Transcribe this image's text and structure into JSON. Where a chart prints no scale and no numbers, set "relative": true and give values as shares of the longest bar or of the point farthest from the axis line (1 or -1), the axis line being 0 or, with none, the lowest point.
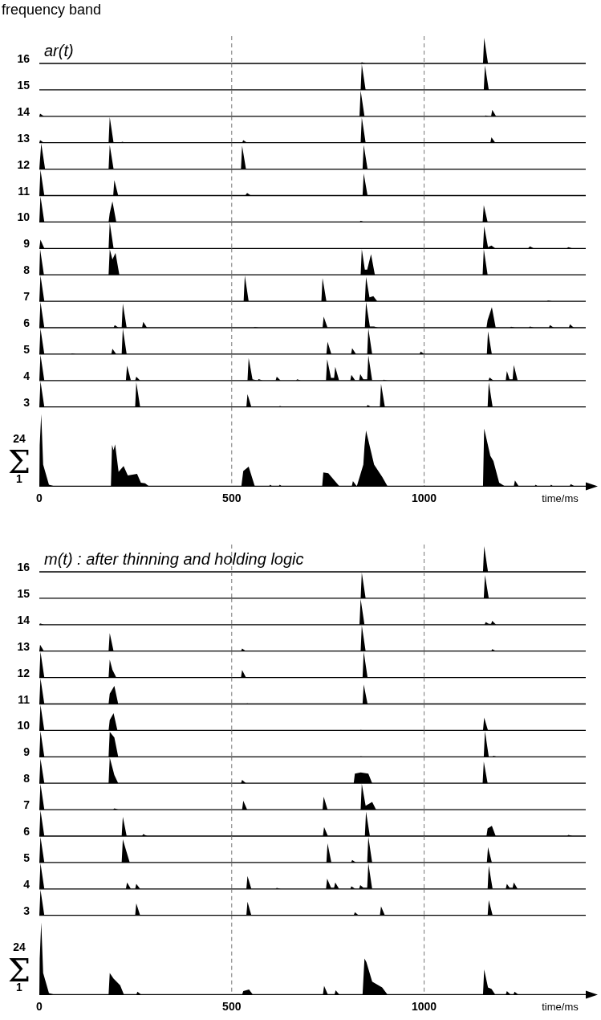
{
  "chart_data": [
    {
      "type": "area",
      "title": "ar(t)",
      "annotations": [
        "frequency band"
      ],
      "ylabel": "16",
      "relative": true,
      "xlim": [
        0,
        1420
      ],
      "xticks": [
        0,
        500,
        1000
      ],
      "grid": "x",
      "tick_labels": false,
      "color": "#000000",
      "x": [
        835,
        838,
        848,
        1153,
        1156,
        1166
      ],
      "values": [
        0,
        0.05,
        0,
        0,
        1,
        0
      ]
    },
    {
      "type": "area",
      "ylabel": "15",
      "relative": true,
      "xlim": [
        0,
        1420
      ],
      "xticks": [
        0,
        500,
        1000
      ],
      "grid": "x",
      "tick_labels": false,
      "color": "#000000",
      "x": [
        835,
        838,
        848,
        1155,
        1158,
        1168
      ],
      "values": [
        0,
        1,
        0,
        0,
        0.95,
        0
      ]
    },
    {
      "type": "area",
      "ylabel": "14",
      "relative": true,
      "xlim": [
        0,
        1420
      ],
      "xticks": [
        0,
        500,
        1000
      ],
      "grid": "x",
      "tick_labels": false,
      "color": "#000000",
      "x": [
        0,
        2,
        12,
        832,
        835,
        845,
        1157,
        1160,
        1168,
        1174,
        1177,
        1187
      ],
      "values": [
        0,
        0.1,
        0,
        0,
        1,
        0,
        0,
        0.03,
        0,
        0,
        0.25,
        0
      ]
    },
    {
      "type": "area",
      "ylabel": "13",
      "relative": true,
      "xlim": [
        0,
        1420
      ],
      "xticks": [
        0,
        500,
        1000
      ],
      "grid": "x",
      "tick_labels": false,
      "color": "#000000",
      "x": [
        0,
        2,
        12,
        180,
        183,
        193,
        212,
        215,
        225,
        527,
        530,
        540,
        835,
        838,
        848,
        1172,
        1175,
        1185
      ],
      "values": [
        0,
        0.1,
        0,
        0,
        1,
        0,
        0,
        0.04,
        0,
        0,
        0.1,
        0,
        0,
        0.98,
        0,
        0,
        0.21,
        0
      ]
    },
    {
      "type": "area",
      "ylabel": "12",
      "relative": true,
      "xlim": [
        0,
        1420
      ],
      "xticks": [
        0,
        500,
        1000
      ],
      "grid": "x",
      "tick_labels": false,
      "color": "#000000",
      "x": [
        0,
        5,
        15,
        180,
        183,
        193,
        524,
        527,
        537,
        840,
        843,
        853
      ],
      "values": [
        0,
        1,
        0,
        0,
        0.94,
        0,
        0,
        0.91,
        0,
        0,
        0.94,
        0
      ]
    },
    {
      "type": "area",
      "ylabel": "11",
      "relative": true,
      "xlim": [
        0,
        1420
      ],
      "xticks": [
        0,
        500,
        1000
      ],
      "grid": "x",
      "tick_labels": false,
      "color": "#000000",
      "x": [
        0,
        3,
        13,
        192,
        195,
        205,
        535,
        540,
        550,
        840,
        843,
        853
      ],
      "values": [
        0,
        1,
        0,
        0,
        0.6,
        0,
        0,
        0.1,
        0,
        0,
        0.86,
        0
      ]
    },
    {
      "type": "area",
      "ylabel": "10",
      "relative": true,
      "xlim": [
        0,
        1420
      ],
      "xticks": [
        0,
        500,
        1000
      ],
      "grid": "x",
      "tick_labels": false,
      "color": "#000000",
      "x": [
        0,
        3,
        13,
        180,
        183,
        190,
        200,
        832,
        835,
        845,
        1152,
        1155,
        1165
      ],
      "values": [
        0,
        1,
        0,
        0,
        0.35,
        0.8,
        0,
        0,
        0.04,
        0,
        0,
        0.65,
        0
      ]
    },
    {
      "type": "area",
      "ylabel": "9",
      "relative": true,
      "xlim": [
        0,
        1420
      ],
      "xticks": [
        0,
        500,
        1000
      ],
      "grid": "x",
      "tick_labels": false,
      "color": "#000000",
      "x": [
        0,
        3,
        13,
        180,
        183,
        193,
        1153,
        1156,
        1166,
        1175,
        1185,
        1270,
        1275,
        1285,
        1370,
        1375,
        1385
      ],
      "values": [
        0,
        0.34,
        0,
        0,
        1,
        0,
        0,
        0.86,
        0.05,
        0.11,
        0,
        0,
        0.08,
        0,
        0,
        0.05,
        0
      ]
    },
    {
      "type": "area",
      "ylabel": "8",
      "relative": true,
      "xlim": [
        0,
        1420
      ],
      "xticks": [
        0,
        500,
        1000
      ],
      "grid": "x",
      "tick_labels": false,
      "color": "#000000",
      "x": [
        0,
        2,
        12,
        180,
        183,
        190,
        198,
        208,
        835,
        838,
        846,
        852,
        862,
        872,
        1152,
        1155,
        1165
      ],
      "values": [
        0,
        1,
        0,
        0,
        1,
        0.6,
        0.85,
        0,
        0,
        1,
        0.2,
        0.2,
        0.8,
        0,
        0,
        1,
        0
      ]
    },
    {
      "type": "area",
      "ylabel": "7",
      "relative": true,
      "xlim": [
        0,
        1420
      ],
      "xticks": [
        0,
        500,
        1000
      ],
      "grid": "x",
      "tick_labels": false,
      "color": "#000000",
      "x": [
        0,
        3,
        13,
        531,
        534,
        544,
        733,
        736,
        746,
        846,
        849,
        858,
        868,
        878,
        1319,
        1322,
        1332
      ],
      "values": [
        0,
        1,
        0,
        0,
        1,
        0,
        0,
        0.9,
        0,
        0,
        0.95,
        0.15,
        0.2,
        0,
        0,
        0.03,
        0
      ]
    },
    {
      "type": "area",
      "ylabel": "6",
      "relative": true,
      "xlim": [
        0,
        1420
      ],
      "xticks": [
        0,
        500,
        1000
      ],
      "grid": "x",
      "tick_labels": false,
      "color": "#000000",
      "x": [
        0,
        3,
        13,
        193,
        196,
        206,
        214,
        217,
        227,
        267,
        270,
        280,
        557,
        560,
        570,
        736,
        739,
        749,
        846,
        849,
        859,
        870,
        880,
        1162,
        1165,
        1176,
        1186,
        1223,
        1226,
        1236,
        1272,
        1275,
        1285,
        1324,
        1327,
        1337,
        1376,
        1379,
        1389
      ],
      "values": [
        0,
        1,
        0,
        0,
        0.1,
        0,
        0,
        0.94,
        0,
        0,
        0.23,
        0,
        0,
        0.02,
        0,
        0,
        0.43,
        0,
        0,
        1,
        0.05,
        0.05,
        0,
        0,
        0.3,
        0.8,
        0,
        0,
        0.04,
        0,
        0,
        0.05,
        0,
        0,
        0.1,
        0,
        0,
        0.13,
        0
      ]
    },
    {
      "type": "area",
      "ylabel": "5",
      "relative": true,
      "xlim": [
        0,
        1420
      ],
      "xticks": [
        0,
        500,
        1000
      ],
      "grid": "x",
      "tick_labels": false,
      "color": "#000000",
      "x": [
        0,
        3,
        13,
        82,
        85,
        95,
        187,
        190,
        200,
        214,
        217,
        227,
        746,
        749,
        759,
        810,
        813,
        823,
        852,
        855,
        865,
        988,
        991,
        1001,
        1163,
        1166,
        1176
      ],
      "values": [
        0,
        1,
        0,
        0,
        0.02,
        0,
        0,
        0.21,
        0,
        0,
        1,
        0,
        0,
        0.48,
        0,
        0,
        0.23,
        0,
        0,
        1,
        0,
        0,
        0.1,
        0,
        0,
        0.89,
        0
      ]
    },
    {
      "type": "area",
      "ylabel": "4",
      "relative": true,
      "xlim": [
        0,
        1420
      ],
      "xticks": [
        0,
        500,
        1000
      ],
      "grid": "x",
      "tick_labels": false,
      "color": "#000000",
      "x": [
        0,
        3,
        13,
        225,
        228,
        238,
        249,
        252,
        262,
        541,
        544,
        554,
        567,
        570,
        580,
        614,
        617,
        627,
        667,
        670,
        680,
        745,
        748,
        758,
        766,
        769,
        779,
        808,
        811,
        821,
        831,
        834,
        842,
        852,
        855,
        865,
        892,
        895,
        905,
        1167,
        1170,
        1180,
        1212,
        1215,
        1222,
        1230,
        1233,
        1243
      ],
      "values": [
        0,
        1,
        0,
        0,
        0.58,
        0,
        0,
        0.15,
        0,
        0,
        0.88,
        0.05,
        0,
        0.06,
        0,
        0,
        0.15,
        0,
        0,
        0.05,
        0,
        0,
        0.83,
        0.1,
        0.1,
        0.53,
        0,
        0,
        0.22,
        0,
        0,
        0.25,
        0.05,
        0.05,
        0.98,
        0,
        0,
        0.03,
        0,
        0,
        0.12,
        0,
        0,
        0.37,
        0.05,
        0.05,
        0.6,
        0
      ]
    },
    {
      "type": "area",
      "ylabel": "3",
      "relative": true,
      "xlim": [
        0,
        1420
      ],
      "xticks": [
        0,
        500,
        1000
      ],
      "grid": "x",
      "tick_labels": false,
      "color": "#000000",
      "x": [
        0,
        3,
        13,
        249,
        252,
        262,
        538,
        541,
        551,
        622,
        625,
        635,
        850,
        853,
        863,
        885,
        888,
        898,
        1165,
        1168,
        1178
      ],
      "values": [
        0,
        1,
        0,
        0,
        0.96,
        0,
        0,
        0.5,
        0,
        0,
        0.04,
        0,
        0,
        0.08,
        0,
        0,
        0.9,
        0,
        0,
        0.96,
        0
      ]
    },
    {
      "type": "area",
      "ylabel": "Σ",
      "annotations": [
        "24",
        "1"
      ],
      "xlabel": "time/ms",
      "relative": true,
      "xlim": [
        0,
        1420
      ],
      "xticks": [
        0,
        500,
        1000
      ],
      "grid": "x",
      "tick_labels": "x",
      "color": "#000000",
      "x": [
        0,
        1,
        5,
        10,
        25,
        40,
        186,
        189,
        193,
        197,
        206,
        219,
        230,
        254,
        264,
        275,
        285,
        525,
        530,
        544,
        560,
        597,
        600,
        605,
        622,
        625,
        630,
        735,
        738,
        751,
        770,
        780,
        812,
        815,
        825,
        842,
        845,
        849,
        870,
        891,
        905,
        997,
        1000,
        1005,
        1153,
        1156,
        1172,
        1180,
        1195,
        1210,
        1233,
        1236,
        1246,
        1287,
        1290,
        1295,
        1327,
        1330,
        1335,
        1378,
        1381,
        1391
      ],
      "values": [
        0,
        0.57,
        1,
        0.3,
        0.02,
        0,
        0,
        0.57,
        0.5,
        0.58,
        0.2,
        0.28,
        0.15,
        0.17,
        0.05,
        0.04,
        0,
        0,
        0.21,
        0.27,
        0,
        0,
        0.02,
        0,
        0,
        0.02,
        0,
        0,
        0.19,
        0.18,
        0.06,
        0,
        0,
        0.07,
        0,
        0.3,
        0.55,
        0.77,
        0.3,
        0.13,
        0,
        0,
        0.01,
        0,
        0,
        0.8,
        0.42,
        0.35,
        0.05,
        0,
        0,
        0.08,
        0,
        0,
        0.02,
        0,
        0,
        0.02,
        0,
        0,
        0.03,
        0
      ]
    },
    {
      "type": "area",
      "title": "m(t) : after thinning and holding logic",
      "ylabel": "16",
      "relative": true,
      "xlim": [
        0,
        1420
      ],
      "xticks": [
        0,
        500,
        1000
      ],
      "grid": "x",
      "tick_labels": false,
      "color": "#000000",
      "x": [
        1153,
        1156,
        1166
      ],
      "values": [
        0,
        1,
        0
      ]
    },
    {
      "type": "area",
      "ylabel": "15",
      "relative": true,
      "xlim": [
        0,
        1420
      ],
      "xticks": [
        0,
        500,
        1000
      ],
      "grid": "x",
      "tick_labels": false,
      "color": "#000000",
      "x": [
        835,
        838,
        848,
        1155,
        1158,
        1168
      ],
      "values": [
        0,
        1,
        0,
        0,
        0.9,
        0
      ]
    },
    {
      "type": "area",
      "ylabel": "14",
      "relative": true,
      "xlim": [
        0,
        1420
      ],
      "xticks": [
        0,
        500,
        1000
      ],
      "grid": "x",
      "tick_labels": false,
      "color": "#000000",
      "x": [
        0,
        2,
        12,
        832,
        835,
        845,
        1157,
        1160,
        1168,
        1174,
        1177,
        1187
      ],
      "values": [
        0,
        0.05,
        0,
        0,
        1,
        0,
        0,
        0.1,
        0.03,
        0.03,
        0.15,
        0
      ]
    },
    {
      "type": "area",
      "ylabel": "13",
      "relative": true,
      "xlim": [
        0,
        1420
      ],
      "xticks": [
        0,
        500,
        1000
      ],
      "grid": "x",
      "tick_labels": false,
      "color": "#000000",
      "x": [
        0,
        2,
        12,
        180,
        183,
        193,
        524,
        527,
        537,
        835,
        838,
        848,
        1174,
        1177,
        1187
      ],
      "values": [
        0,
        0.25,
        0,
        0,
        0.7,
        0,
        0,
        0.1,
        0,
        0,
        1,
        0,
        0,
        0.08,
        0
      ]
    },
    {
      "type": "area",
      "ylabel": "12",
      "relative": true,
      "xlim": [
        0,
        1420
      ],
      "xticks": [
        0,
        500,
        1000
      ],
      "grid": "x",
      "tick_labels": false,
      "color": "#000000",
      "x": [
        0,
        3,
        13,
        180,
        183,
        190,
        200,
        524,
        527,
        537,
        840,
        843,
        853
      ],
      "values": [
        0,
        1,
        0,
        0,
        0.7,
        0.3,
        0,
        0,
        0.29,
        0,
        0,
        1,
        0
      ]
    },
    {
      "type": "area",
      "ylabel": "11",
      "relative": true,
      "xlim": [
        0,
        1420
      ],
      "xticks": [
        0,
        500,
        1000
      ],
      "grid": "x",
      "tick_labels": false,
      "color": "#000000",
      "x": [
        0,
        3,
        13,
        180,
        183,
        195,
        205,
        537,
        540,
        550,
        840,
        843,
        853
      ],
      "values": [
        0,
        1,
        0,
        0,
        0.4,
        0.7,
        0,
        0,
        0.02,
        0,
        0,
        0.76,
        0
      ]
    },
    {
      "type": "area",
      "ylabel": "10",
      "relative": true,
      "xlim": [
        0,
        1420
      ],
      "xticks": [
        0,
        500,
        1000
      ],
      "grid": "x",
      "tick_labels": false,
      "color": "#000000",
      "x": [
        0,
        3,
        13,
        180,
        183,
        193,
        203,
        832,
        835,
        845,
        1153,
        1156,
        1166
      ],
      "values": [
        0,
        1,
        0,
        0,
        0.4,
        0.67,
        0,
        0,
        0.02,
        0,
        0,
        0.5,
        0
      ]
    },
    {
      "type": "area",
      "ylabel": "9",
      "relative": true,
      "xlim": [
        0,
        1420
      ],
      "xticks": [
        0,
        500,
        1000
      ],
      "grid": "x",
      "tick_labels": false,
      "color": "#000000",
      "x": [
        0,
        3,
        13,
        180,
        183,
        195,
        205,
        832,
        835,
        845,
        1155,
        1158,
        1168,
        1177,
        1180,
        1190
      ],
      "values": [
        0,
        1,
        0,
        0,
        0.97,
        0.75,
        0,
        0,
        0.02,
        0,
        0,
        1,
        0,
        0,
        0.03,
        0
      ]
    },
    {
      "type": "area",
      "ylabel": "8",
      "relative": true,
      "xlim": [
        0,
        1420
      ],
      "xticks": [
        0,
        500,
        1000
      ],
      "grid": "x",
      "tick_labels": false,
      "color": "#000000",
      "x": [
        0,
        3,
        13,
        180,
        183,
        195,
        205,
        524,
        527,
        537,
        817,
        820,
        835,
        855,
        865,
        1152,
        1155,
        1165
      ],
      "values": [
        0,
        0.95,
        0,
        0,
        1,
        0.32,
        0,
        0,
        0.13,
        0,
        0,
        0.37,
        0.42,
        0.37,
        0,
        0,
        0.84,
        0
      ]
    },
    {
      "type": "area",
      "ylabel": "7",
      "relative": true,
      "xlim": [
        0,
        1420
      ],
      "xticks": [
        0,
        500,
        1000
      ],
      "grid": "x",
      "tick_labels": false,
      "color": "#000000",
      "x": [
        0,
        3,
        13,
        192,
        195,
        205,
        527,
        530,
        540,
        736,
        739,
        749,
        835,
        838,
        848,
        865,
        875
      ],
      "values": [
        0,
        1,
        0,
        0,
        0.05,
        0,
        0,
        0.35,
        0,
        0,
        0.5,
        0,
        0,
        1,
        0.15,
        0.3,
        0
      ]
    },
    {
      "type": "area",
      "ylabel": "6",
      "relative": true,
      "xlim": [
        0,
        1420
      ],
      "xticks": [
        0,
        500,
        1000
      ],
      "grid": "x",
      "tick_labels": false,
      "color": "#000000",
      "x": [
        0,
        3,
        13,
        214,
        217,
        227,
        267,
        270,
        280,
        737,
        740,
        750,
        846,
        849,
        859,
        1162,
        1165,
        1176,
        1186,
        1372,
        1375,
        1385
      ],
      "values": [
        0,
        1,
        0,
        0,
        0.75,
        0,
        0,
        0.08,
        0,
        0,
        0.35,
        0,
        0,
        0.95,
        0,
        0,
        0.3,
        0.4,
        0,
        0,
        0.05,
        0
      ]
    },
    {
      "type": "area",
      "ylabel": "5",
      "relative": true,
      "xlim": [
        0,
        1420
      ],
      "xticks": [
        0,
        500,
        1000
      ],
      "grid": "x",
      "tick_labels": false,
      "color": "#000000",
      "x": [
        0,
        3,
        13,
        214,
        217,
        225,
        235,
        746,
        749,
        759,
        810,
        813,
        823,
        852,
        855,
        865,
        1163,
        1166,
        1176
      ],
      "values": [
        0,
        1,
        0,
        0,
        0.9,
        0.5,
        0,
        0,
        0.75,
        0,
        0,
        0.1,
        0,
        0,
        1,
        0,
        0,
        0.6,
        0
      ]
    },
    {
      "type": "area",
      "ylabel": "4",
      "relative": true,
      "xlim": [
        0,
        1420
      ],
      "xticks": [
        0,
        500,
        1000
      ],
      "grid": "x",
      "tick_labels": false,
      "color": "#000000",
      "x": [
        0,
        3,
        13,
        225,
        228,
        238,
        249,
        252,
        262,
        538,
        541,
        551,
        614,
        617,
        627,
        745,
        748,
        758,
        766,
        769,
        779,
        808,
        811,
        821,
        831,
        834,
        842,
        852,
        855,
        865,
        1165,
        1168,
        1178,
        1212,
        1215,
        1222,
        1230,
        1233,
        1243
      ],
      "values": [
        0,
        1,
        0,
        0,
        0.25,
        0,
        0,
        0.2,
        0,
        0,
        0.5,
        0,
        0,
        0.04,
        0,
        0,
        0.4,
        0.05,
        0.05,
        0.25,
        0,
        0,
        0.1,
        0,
        0,
        0.15,
        0.05,
        0.05,
        1,
        0,
        0,
        0.9,
        0,
        0,
        0.2,
        0.05,
        0.05,
        0.25,
        0
      ]
    },
    {
      "type": "area",
      "ylabel": "3",
      "relative": true,
      "xlim": [
        0,
        1420
      ],
      "xticks": [
        0,
        500,
        1000
      ],
      "grid": "x",
      "tick_labels": false,
      "color": "#000000",
      "x": [
        0,
        3,
        13,
        249,
        252,
        262,
        538,
        541,
        551,
        817,
        820,
        830,
        885,
        888,
        898,
        1165,
        1168,
        1178
      ],
      "values": [
        0,
        1,
        0,
        0,
        0.47,
        0,
        0,
        0.53,
        0,
        0,
        0.12,
        0,
        0,
        0.35,
        0,
        0,
        0.59,
        0
      ]
    },
    {
      "type": "area",
      "ylabel": "Σ",
      "annotations": [
        "24",
        "1"
      ],
      "xlabel": "time/ms",
      "relative": true,
      "xlim": [
        0,
        1420
      ],
      "xticks": [
        0,
        500,
        1000
      ],
      "grid": "x",
      "tick_labels": "x",
      "color": "#000000",
      "x": [
        0,
        1,
        5,
        10,
        25,
        40,
        180,
        183,
        193,
        210,
        220,
        252,
        255,
        265,
        527,
        530,
        545,
        555,
        737,
        740,
        750,
        767,
        770,
        780,
        840,
        845,
        850,
        865,
        891,
        905,
        1153,
        1156,
        1166,
        1175,
        1185,
        1212,
        1215,
        1225,
        1232,
        1235,
        1245
      ],
      "values": [
        0,
        0.5,
        1,
        0.3,
        0.02,
        0,
        0,
        0.3,
        0.22,
        0.13,
        0,
        0,
        0.04,
        0,
        0,
        0.05,
        0.07,
        0,
        0,
        0.12,
        0,
        0,
        0.06,
        0,
        0,
        0.5,
        0.45,
        0.18,
        0.1,
        0,
        0,
        0.35,
        0.1,
        0.08,
        0,
        0,
        0.05,
        0,
        0,
        0.04,
        0
      ]
    }
  ]
}
